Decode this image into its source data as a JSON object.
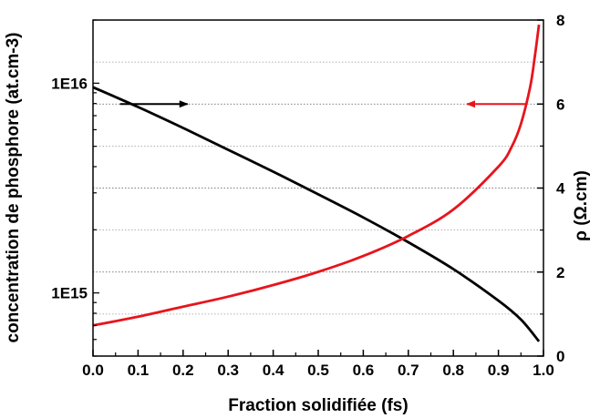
{
  "chart_data": {
    "type": "line",
    "xlabel": "Fraction solidifiée (fs)",
    "ylabel_left": "concentration de phosphore (at.cm-3)",
    "ylabel_right": "ρ (Ω.cm)",
    "xlim": [
      0.0,
      1.0
    ],
    "ylim_left": [
      500000000000000,
      20000000000000000
    ],
    "ylim_right": [
      0,
      8
    ],
    "y_left_scale": "log",
    "x_ticks": [
      "0.0",
      "0.1",
      "0.2",
      "0.3",
      "0.4",
      "0.5",
      "0.6",
      "0.7",
      "0.8",
      "0.9",
      "1.0"
    ],
    "y_left_ticks": [
      {
        "value": 1000000000000000,
        "label": "1E15"
      },
      {
        "value": 10000000000000000,
        "label": "1E16"
      }
    ],
    "y_right_ticks": [
      "0",
      "2",
      "4",
      "6",
      "8"
    ],
    "grid": "horizontal dotted",
    "series": [
      {
        "axis": "right",
        "color": "#000000",
        "x": [
          0.0,
          0.1,
          0.2,
          0.3,
          0.4,
          0.5,
          0.6,
          0.7,
          0.8,
          0.9,
          0.95,
          0.99
        ],
        "y": [
          6.4,
          5.93,
          5.43,
          4.91,
          4.39,
          3.85,
          3.3,
          2.71,
          2.07,
          1.32,
          0.87,
          0.35
        ]
      },
      {
        "axis": "left",
        "color": "#e8141c",
        "x": [
          0.0,
          0.1,
          0.2,
          0.3,
          0.4,
          0.5,
          0.6,
          0.7,
          0.8,
          0.9,
          0.93,
          0.95,
          0.97,
          0.98,
          0.99
        ],
        "y": [
          700000000000000,
          770000000000000,
          860000000000000,
          960000000000000,
          1090000000000000,
          1260000000000000,
          1500000000000000,
          1870000000000000,
          2500000000000000,
          4000000000000000,
          5000000000000000,
          6400000000000000,
          9500000000000000,
          13000000000000000,
          19000000000000000
        ]
      }
    ],
    "annotations": [
      {
        "type": "arrow",
        "color": "#000000",
        "x_from": 0.06,
        "x_to": 0.21,
        "y": 6,
        "axis": "right",
        "direction": "right"
      },
      {
        "type": "arrow",
        "color": "#e8141c",
        "x_from": 0.96,
        "x_to": 0.83,
        "y": 6,
        "axis": "right",
        "direction": "left"
      }
    ]
  }
}
